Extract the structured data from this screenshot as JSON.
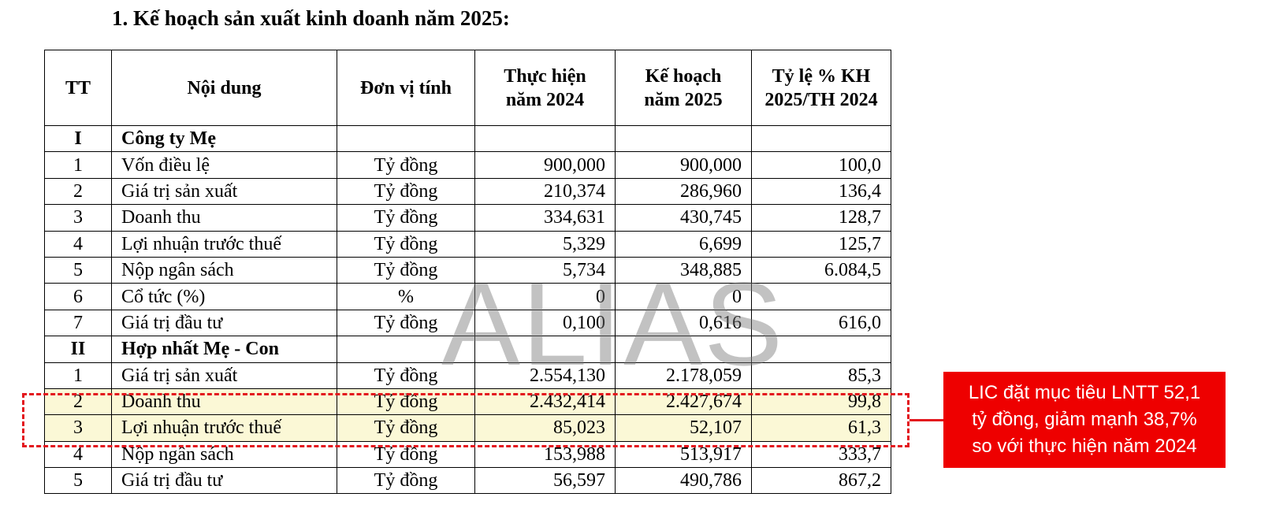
{
  "heading": "1. Kế hoạch sản xuất kinh doanh năm 2025:",
  "table": {
    "headers": [
      "TT",
      "Nội dung",
      "Đơn vị tính",
      "Thực hiện năm 2024",
      "Kế hoạch năm 2025",
      "Tỷ lệ % KH 2025/TH 2024"
    ],
    "rows": [
      {
        "tt": "I",
        "content": "Công ty Mẹ",
        "unit": "",
        "th2024": "",
        "kh2025": "",
        "ratio": ""
      },
      {
        "tt": "1",
        "content": "Vốn điều lệ",
        "unit": "Tỷ đồng",
        "th2024": "900,000",
        "kh2025": "900,000",
        "ratio": "100,0"
      },
      {
        "tt": "2",
        "content": "Giá trị sản xuất",
        "unit": "Tỷ đồng",
        "th2024": "210,374",
        "kh2025": "286,960",
        "ratio": "136,4"
      },
      {
        "tt": "3",
        "content": "Doanh thu",
        "unit": "Tỷ đồng",
        "th2024": "334,631",
        "kh2025": "430,745",
        "ratio": "128,7"
      },
      {
        "tt": "4",
        "content": "Lợi nhuận trước thuế",
        "unit": "Tỷ đồng",
        "th2024": "5,329",
        "kh2025": "6,699",
        "ratio": "125,7"
      },
      {
        "tt": "5",
        "content": "Nộp ngân sách",
        "unit": "Tỷ đồng",
        "th2024": "5,734",
        "kh2025": "348,885",
        "ratio": "6.084,5"
      },
      {
        "tt": "6",
        "content": "Cổ tức (%)",
        "unit": "%",
        "th2024": "0",
        "kh2025": "0",
        "ratio": ""
      },
      {
        "tt": "7",
        "content": "Giá trị đầu tư",
        "unit": "Tỷ đồng",
        "th2024": "0,100",
        "kh2025": "0,616",
        "ratio": "616,0"
      },
      {
        "tt": "II",
        "content": "Hợp nhất Mẹ - Con",
        "unit": "",
        "th2024": "",
        "kh2025": "",
        "ratio": ""
      },
      {
        "tt": "1",
        "content": "Giá trị sản xuất",
        "unit": "Tỷ đồng",
        "th2024": "2.554,130",
        "kh2025": "2.178,059",
        "ratio": "85,3"
      },
      {
        "tt": "2",
        "content": "Doanh thu",
        "unit": "Tỷ đồng",
        "th2024": "2.432,414",
        "kh2025": "2.427,674",
        "ratio": "99,8"
      },
      {
        "tt": "3",
        "content": "Lợi nhuận trước thuế",
        "unit": "Tỷ đồng",
        "th2024": "85,023",
        "kh2025": "52,107",
        "ratio": "61,3"
      },
      {
        "tt": "4",
        "content": "Nộp ngân sách",
        "unit": "Tỷ đồng",
        "th2024": "153,988",
        "kh2025": "513,917",
        "ratio": "333,7"
      },
      {
        "tt": "5",
        "content": "Giá trị đầu tư",
        "unit": "Tỷ đồng",
        "th2024": "56,597",
        "kh2025": "490,786",
        "ratio": "867,2"
      }
    ]
  },
  "watermark": "ALIAS",
  "callout": {
    "lines": [
      "LIC đặt mục tiêu LNTT 52,1",
      "tỷ đồng, giảm mạnh 38,7%",
      "so với thực hiện năm 2024"
    ]
  },
  "colors": {
    "highlight_fill": "#fbf8d6",
    "accent_red": "#e3161d",
    "callout_bg": "#ee0000"
  }
}
